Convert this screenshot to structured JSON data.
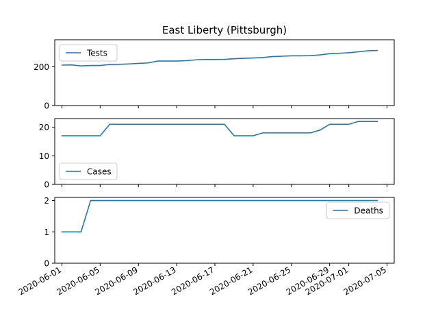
{
  "title": "East Liberty (Pittsburgh)",
  "chart_data": {
    "type": "line",
    "title": "East Liberty (Pittsburgh)",
    "x": [
      "2020-06-01",
      "2020-06-02",
      "2020-06-03",
      "2020-06-04",
      "2020-06-05",
      "2020-06-06",
      "2020-06-07",
      "2020-06-08",
      "2020-06-09",
      "2020-06-10",
      "2020-06-11",
      "2020-06-12",
      "2020-06-13",
      "2020-06-14",
      "2020-06-15",
      "2020-06-16",
      "2020-06-17",
      "2020-06-18",
      "2020-06-19",
      "2020-06-20",
      "2020-06-21",
      "2020-06-22",
      "2020-06-23",
      "2020-06-24",
      "2020-06-25",
      "2020-06-26",
      "2020-06-27",
      "2020-06-28",
      "2020-06-29",
      "2020-06-30",
      "2020-07-01",
      "2020-07-02",
      "2020-07-03",
      "2020-07-04"
    ],
    "xlim": [
      "2020-05-31T06:00",
      "2020-07-05T18:00"
    ],
    "xticks": [
      "2020-06-01",
      "2020-06-05",
      "2020-06-09",
      "2020-06-13",
      "2020-06-17",
      "2020-06-21",
      "2020-06-25",
      "2020-06-29",
      "2020-07-01",
      "2020-07-05"
    ],
    "color": "#1f77b4",
    "panels": [
      {
        "name": "Tests",
        "legend_position": "upper-left",
        "ylim": [
          0,
          340
        ],
        "yticks": [
          0,
          200
        ],
        "values": [
          209,
          210,
          205,
          207,
          207,
          212,
          213,
          215,
          218,
          220,
          230,
          230,
          230,
          232,
          236,
          238,
          238,
          239,
          242,
          244,
          246,
          248,
          253,
          255,
          257,
          257,
          258,
          262,
          268,
          270,
          273,
          278,
          283,
          285
        ]
      },
      {
        "name": "Cases",
        "legend_position": "lower-left",
        "ylim": [
          0,
          23
        ],
        "yticks": [
          0,
          10,
          20
        ],
        "values": [
          17,
          17,
          17,
          17,
          17,
          21,
          21,
          21,
          21,
          21,
          21,
          21,
          21,
          21,
          21,
          21,
          21,
          21,
          17,
          17,
          17,
          18,
          18,
          18,
          18,
          18,
          18,
          19,
          21,
          21,
          21,
          22,
          22,
          22
        ]
      },
      {
        "name": "Deaths",
        "legend_position": "upper-right",
        "ylim": [
          0,
          2.1
        ],
        "yticks": [
          0,
          1,
          2
        ],
        "values": [
          1,
          1,
          1,
          2,
          2,
          2,
          2,
          2,
          2,
          2,
          2,
          2,
          2,
          2,
          2,
          2,
          2,
          2,
          2,
          2,
          2,
          2,
          2,
          2,
          2,
          2,
          2,
          2,
          2,
          2,
          2,
          2,
          2,
          2
        ]
      }
    ]
  }
}
